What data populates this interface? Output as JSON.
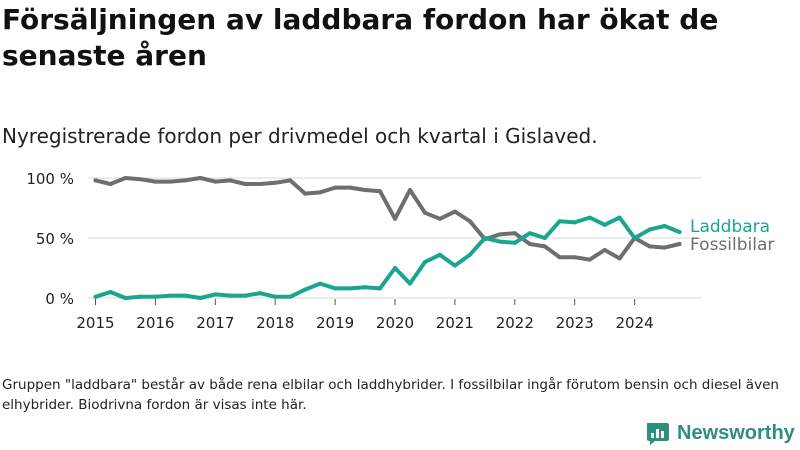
{
  "title": "Försäljningen av laddbara fordon har ökat de senaste åren",
  "subtitle": "Nyregistrerade fordon per drivmedel och kvartal i Gislaved.",
  "note": "Gruppen \"laddbara\" består av både rena elbilar och laddhybrider. I fossilbilar ingår förutom bensin och diesel även elhybrider. Biodrivna fordon är visas inte här.",
  "brand": {
    "name": "Newsworthy",
    "icon": "newsworthy-logo-icon"
  },
  "colors": {
    "laddbara": "#1aa591",
    "fossil": "#6e6e6e",
    "grid": "#d9d9d9"
  },
  "chart_data": {
    "type": "line",
    "title": "Nyregistrerade fordon per drivmedel och kvartal i Gislaved.",
    "xlabel": "",
    "ylabel": "",
    "ylim": [
      0,
      100
    ],
    "xlim": [
      2014.875,
      2025.125
    ],
    "y_ticks": [
      {
        "value": 0,
        "label": "0 %"
      },
      {
        "value": 50,
        "label": "50 %"
      },
      {
        "value": 100,
        "label": "100 %"
      }
    ],
    "x_ticks": [
      {
        "value": 2015,
        "label": "2015"
      },
      {
        "value": 2016,
        "label": "2016"
      },
      {
        "value": 2017,
        "label": "2017"
      },
      {
        "value": 2018,
        "label": "2018"
      },
      {
        "value": 2019,
        "label": "2019"
      },
      {
        "value": 2020,
        "label": "2020"
      },
      {
        "value": 2021,
        "label": "2021"
      },
      {
        "value": 2022,
        "label": "2022"
      },
      {
        "value": 2023,
        "label": "2023"
      },
      {
        "value": 2024,
        "label": "2024"
      }
    ],
    "x": [
      2015.0,
      2015.25,
      2015.5,
      2015.75,
      2016.0,
      2016.25,
      2016.5,
      2016.75,
      2017.0,
      2017.25,
      2017.5,
      2017.75,
      2018.0,
      2018.25,
      2018.5,
      2018.75,
      2019.0,
      2019.25,
      2019.5,
      2019.75,
      2020.0,
      2020.25,
      2020.5,
      2020.75,
      2021.0,
      2021.25,
      2021.5,
      2021.75,
      2022.0,
      2022.25,
      2022.5,
      2022.75,
      2023.0,
      2023.25,
      2023.5,
      2023.75,
      2024.0,
      2024.25,
      2024.5,
      2024.75
    ],
    "series": [
      {
        "name": "Laddbara",
        "color": "#1aa591",
        "values": [
          1,
          5,
          0,
          1,
          1,
          2,
          2,
          0,
          3,
          2,
          2,
          4,
          1,
          1,
          7,
          12,
          8,
          8,
          9,
          8,
          25,
          12,
          30,
          36,
          27,
          36,
          50,
          47,
          46,
          54,
          50,
          64,
          63,
          67,
          61,
          67,
          50,
          57,
          60,
          55
        ]
      },
      {
        "name": "Fossilbilar",
        "color": "#6e6e6e",
        "values": [
          98,
          95,
          100,
          99,
          97,
          97,
          98,
          100,
          97,
          98,
          95,
          95,
          96,
          98,
          87,
          88,
          92,
          92,
          90,
          89,
          66,
          90,
          71,
          66,
          72,
          64,
          49,
          53,
          54,
          45,
          43,
          34,
          34,
          32,
          40,
          33,
          50,
          43,
          42,
          45
        ]
      }
    ],
    "legend": "direct labels at line ends",
    "grid": true
  }
}
